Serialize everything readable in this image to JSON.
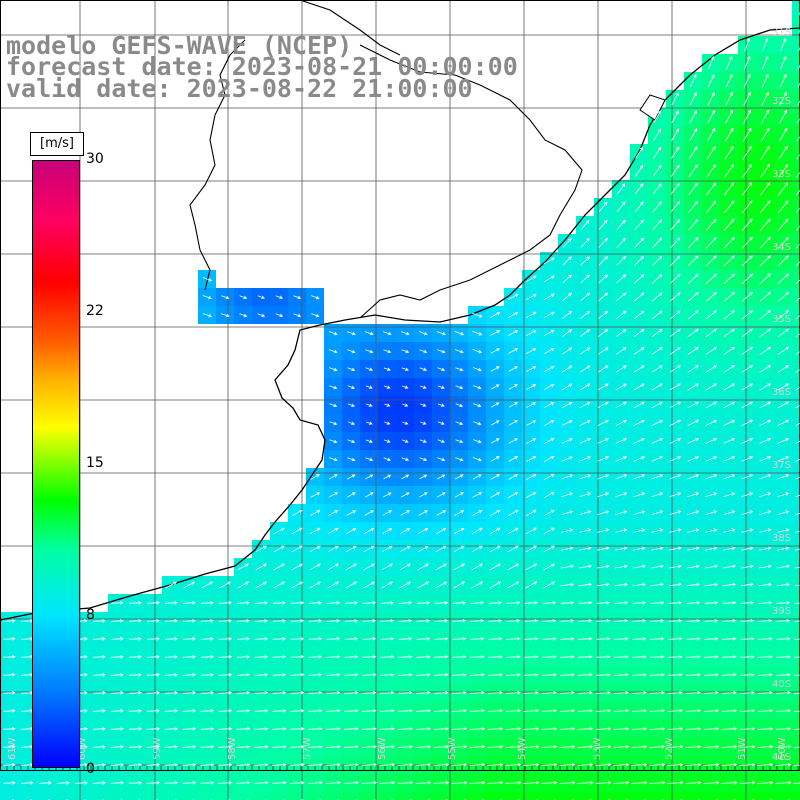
{
  "title": {
    "line1": "modelo GEFS-WAVE (NCEP)",
    "line2": "forecast date: 2023-08-21 00:00:00",
    "line3": "valid date: 2023-08-22 21:00:00"
  },
  "colorbar": {
    "units": "[m/s]",
    "ticks": [
      "30",
      "22",
      "15",
      "8",
      "0"
    ],
    "min": 0,
    "max": 30,
    "colors": [
      "#0000ff",
      "#00e5ff",
      "#00ff00",
      "#ffff00",
      "#ff0000",
      "#c8007a"
    ]
  },
  "map": {
    "variable": "wind speed and direction",
    "lon_labels": [
      "61W",
      "60W",
      "59W",
      "58W",
      "57W",
      "56W",
      "55W",
      "54W",
      "53W",
      "52W",
      "51W",
      "50W"
    ],
    "lat_labels": [
      "31S",
      "32S",
      "33S",
      "34S",
      "35S",
      "36S",
      "37S",
      "38S",
      "39S",
      "40S",
      "41S"
    ],
    "colors": {
      "land": "#ffffff",
      "coast": "#000000",
      "grid": "#555555",
      "arrow": "#ffffff"
    }
  }
}
